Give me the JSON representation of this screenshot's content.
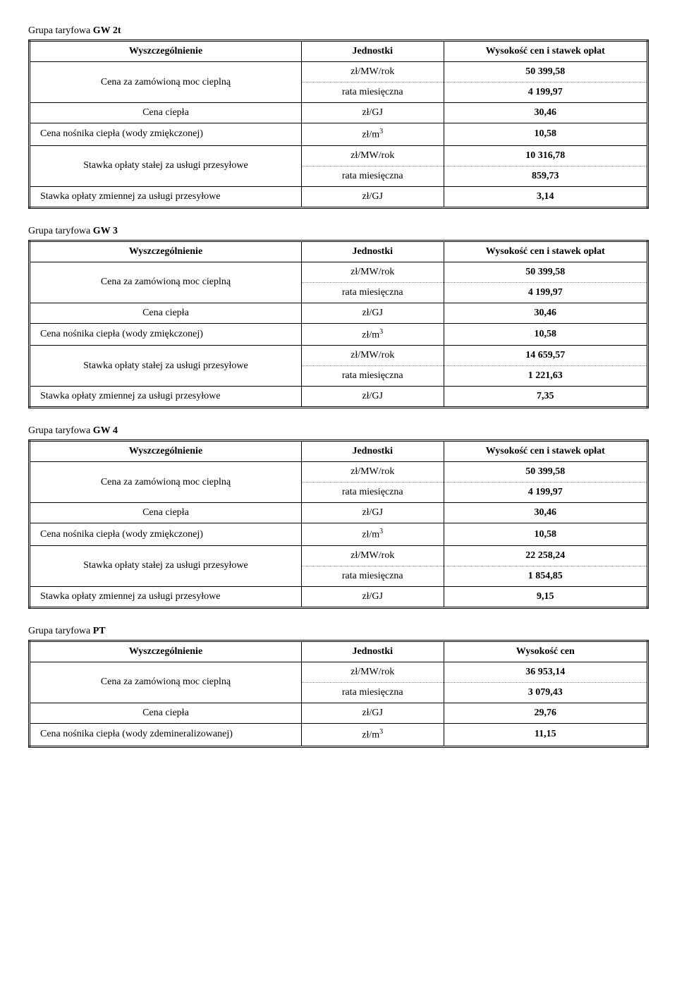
{
  "labels": {
    "group_prefix": "Grupa taryfowa ",
    "header_item": "Wyszczególnienie",
    "header_unit": "Jednostki",
    "header_value_full": "Wysokość cen i stawek opłat",
    "header_value_short": "Wysokość cen",
    "row_ordered_power": "Cena za zamówioną moc cieplną",
    "row_heat_price": "Cena ciepła",
    "row_carrier_soft": "Cena nośnika ciepła  (wody zmiękczonej)",
    "row_carrier_demin": "Cena nośnika ciepła (wody zdemineralizowanej)",
    "row_fixed_fee": "Stawka opłaty stałej za usługi przesyłowe",
    "row_var_fee": "Stawka opłaty zmiennej za usługi przesyłowe",
    "unit_mw_year": "zł/MW/rok",
    "unit_monthly": "rata miesięczna",
    "unit_gj": "zł/GJ",
    "unit_m3_prefix": "zł/m",
    "unit_m3_sup": "3"
  },
  "groups": {
    "gw2t": {
      "code": "GW 2t",
      "ordered_year": "50 399,58",
      "ordered_month": "4 199,97",
      "heat_price": "30,46",
      "carrier": "10,58",
      "fixed_year": "10 316,78",
      "fixed_month": "859,73",
      "var_fee": "3,14"
    },
    "gw3": {
      "code": "GW 3",
      "ordered_year": "50 399,58",
      "ordered_month": "4 199,97",
      "heat_price": "30,46",
      "carrier": "10,58",
      "fixed_year": "14 659,57",
      "fixed_month": "1 221,63",
      "var_fee": "7,35"
    },
    "gw4": {
      "code": "GW 4",
      "ordered_year": "50 399,58",
      "ordered_month": "4 199,97",
      "heat_price": "30,46",
      "carrier": "10,58",
      "fixed_year": "22 258,24",
      "fixed_month": "1 854,85",
      "var_fee": "9,15"
    },
    "pt": {
      "code": "PT",
      "ordered_year": "36 953,14",
      "ordered_month": "3 079,43",
      "heat_price": "29,76",
      "carrier": "11,15"
    }
  }
}
